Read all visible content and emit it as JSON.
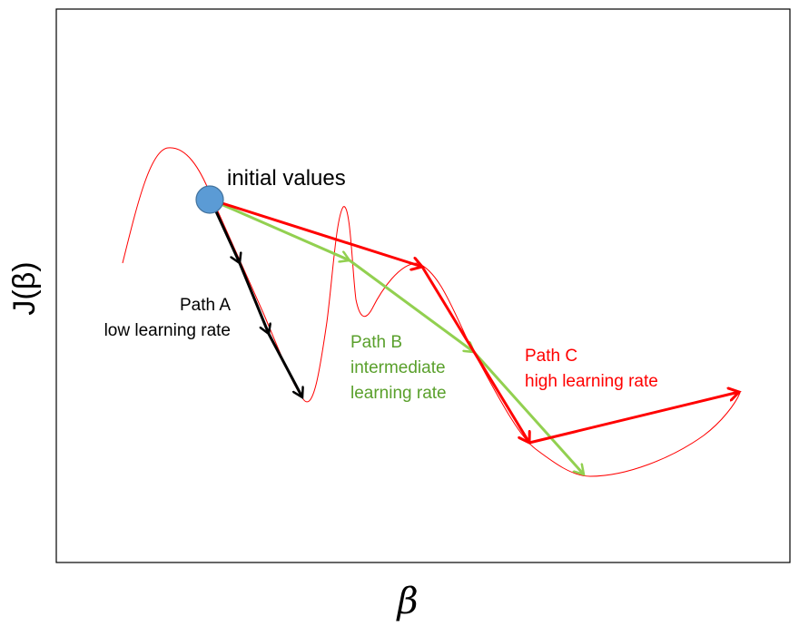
{
  "labels": {
    "initial": "initial values",
    "path_a_title": "Path A",
    "path_a_desc": "low learning rate",
    "path_b_title": "Path B",
    "path_b_desc1": "intermediate",
    "path_b_desc2": "learning rate",
    "path_c_title": "Path C",
    "path_c_desc": "high learning rate",
    "y_axis": "J(β)",
    "x_axis": "β"
  },
  "colors": {
    "curve": "#ff0000",
    "path_a": "#000000",
    "path_b": "#92d050",
    "path_b_text": "#5aa02c",
    "path_c": "#ff0000",
    "start_point": "#5b9bd5"
  }
}
